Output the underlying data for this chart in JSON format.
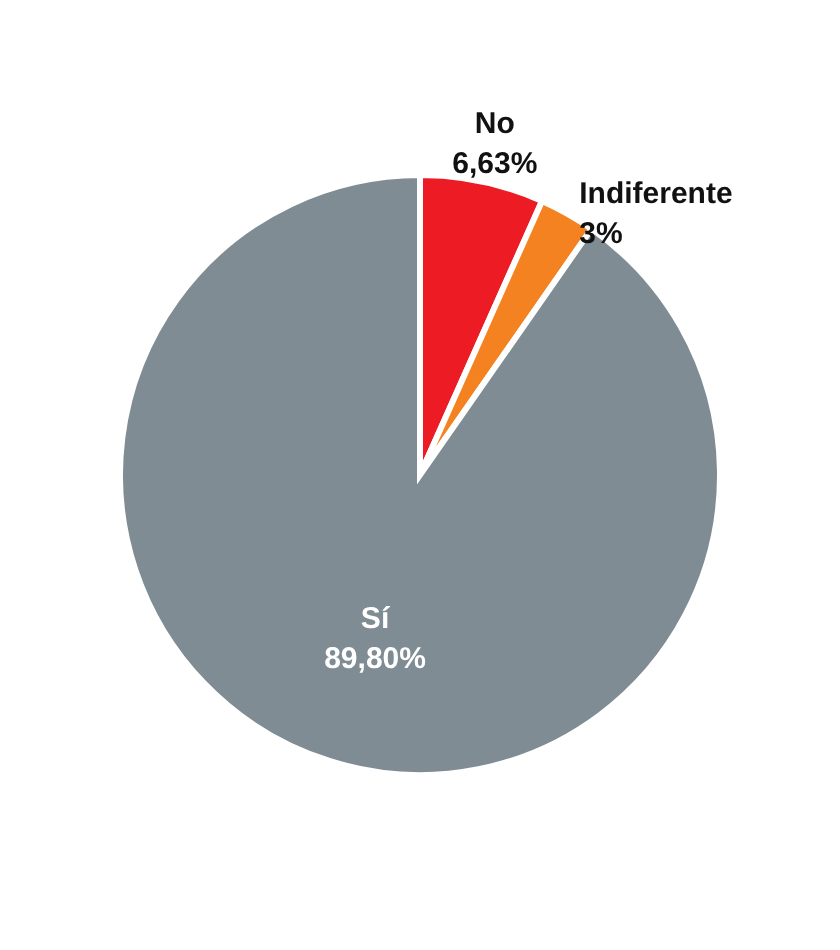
{
  "chart_data": {
    "type": "pie",
    "categories": [
      "No",
      "Indiferente",
      "Sí"
    ],
    "values": [
      6.63,
      3,
      89.8
    ],
    "value_labels": [
      "6,63%",
      "3%",
      "89,80%"
    ],
    "colors": [
      "#ed1c24",
      "#f58220",
      "#7f8c94"
    ]
  }
}
